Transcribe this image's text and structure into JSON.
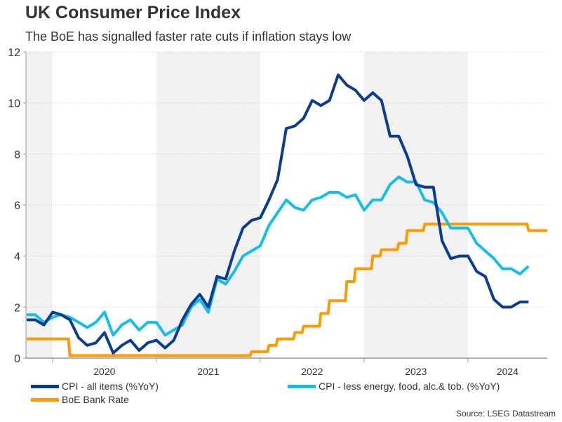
{
  "chart_data": {
    "type": "line",
    "title": "UK Consumer Price Index",
    "subtitle": "The BoE has signalled faster rate cuts if inflation stays low",
    "xlabel": "",
    "ylabel": "",
    "ylim": [
      0,
      12
    ],
    "yticks": [
      0,
      2,
      4,
      6,
      8,
      10,
      12
    ],
    "x_start": "2019-10",
    "x_end": "2024-10",
    "xtick_labels": [
      "2020",
      "2021",
      "2022",
      "2023",
      "2024"
    ],
    "shaded_years": [
      "2019",
      "2021",
      "2023"
    ],
    "grid": "horizontal-dotted",
    "legend_position": "bottom",
    "source": "Source: LSEG Datastream",
    "series": [
      {
        "name": "CPI - all items (%YoY)",
        "color": "#0a3d8f",
        "start": "2019-10",
        "values": [
          1.5,
          1.5,
          1.3,
          1.8,
          1.7,
          1.5,
          0.8,
          0.5,
          0.6,
          1.0,
          0.2,
          0.5,
          0.7,
          0.3,
          0.6,
          0.7,
          0.4,
          0.7,
          1.5,
          2.1,
          2.5,
          2.0,
          3.2,
          3.1,
          4.2,
          5.1,
          5.4,
          5.5,
          6.2,
          7.0,
          9.0,
          9.1,
          9.4,
          10.1,
          9.9,
          10.1,
          11.1,
          10.7,
          10.5,
          10.1,
          10.4,
          10.1,
          8.7,
          8.7,
          7.9,
          6.8,
          6.7,
          6.7,
          4.6,
          3.9,
          4.0,
          4.0,
          3.4,
          3.2,
          2.3,
          2.0,
          2.0,
          2.2,
          2.2
        ]
      },
      {
        "name": "CPI - less energy, food, alc.& tob. (%YoY)",
        "color": "#14bdec",
        "start": "2019-10",
        "values": [
          1.7,
          1.7,
          1.4,
          1.6,
          1.7,
          1.6,
          1.4,
          1.2,
          1.4,
          1.8,
          0.9,
          1.3,
          1.5,
          1.1,
          1.4,
          1.4,
          0.9,
          1.1,
          1.3,
          2.0,
          2.3,
          1.8,
          3.1,
          2.9,
          3.4,
          4.0,
          4.2,
          4.4,
          5.2,
          5.7,
          6.2,
          5.9,
          5.8,
          6.2,
          6.3,
          6.5,
          6.5,
          6.3,
          6.4,
          5.8,
          6.2,
          6.2,
          6.8,
          7.1,
          6.9,
          6.9,
          6.2,
          6.1,
          5.7,
          5.1,
          5.1,
          5.1,
          4.5,
          4.2,
          3.9,
          3.5,
          3.5,
          3.3,
          3.6
        ]
      },
      {
        "name": "BoE Bank Rate",
        "color": "#ff9900",
        "start": "2019-10",
        "step": true,
        "values": [
          0.75,
          0.75,
          0.75,
          0.75,
          0.75,
          0.1,
          0.1,
          0.1,
          0.1,
          0.1,
          0.1,
          0.1,
          0.1,
          0.1,
          0.1,
          0.1,
          0.1,
          0.1,
          0.1,
          0.1,
          0.1,
          0.1,
          0.1,
          0.1,
          0.1,
          0.1,
          0.25,
          0.25,
          0.5,
          0.75,
          0.75,
          1.0,
          1.25,
          1.25,
          1.75,
          2.25,
          2.25,
          3.0,
          3.5,
          3.5,
          4.0,
          4.25,
          4.25,
          4.5,
          5.0,
          5.0,
          5.25,
          5.25,
          5.25,
          5.25,
          5.25,
          5.25,
          5.25,
          5.25,
          5.25,
          5.25,
          5.25,
          5.25,
          5.0,
          5.0,
          5.0
        ]
      }
    ]
  }
}
